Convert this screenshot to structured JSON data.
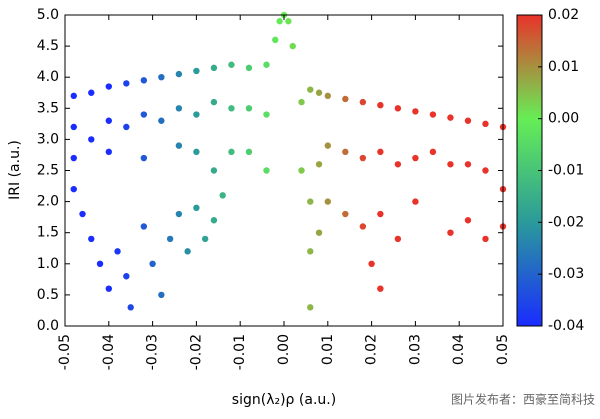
{
  "chart_data": {
    "type": "scatter",
    "xlabel": "sign(λ₂)ρ (a.u.)",
    "ylabel": "IRI (a.u.)",
    "watermark": "图片发布者：西豪至简科技",
    "x": [
      -0.048,
      -0.048,
      -0.048,
      -0.044,
      -0.044,
      -0.04,
      -0.04,
      -0.04,
      -0.036,
      -0.036,
      -0.032,
      -0.032,
      -0.032,
      -0.028,
      -0.028,
      -0.024,
      -0.024,
      -0.024,
      -0.02,
      -0.02,
      -0.02,
      -0.016,
      -0.016,
      -0.016,
      -0.012,
      -0.012,
      -0.012,
      -0.008,
      -0.008,
      -0.008,
      -0.004,
      -0.004,
      -0.004,
      -0.002,
      -0.001,
      0,
      0.001,
      0.002,
      0.004,
      0.004,
      0.006,
      0.006,
      0.006,
      0.006,
      0.008,
      0.008,
      0.008,
      0.01,
      0.01,
      0.01,
      0.014,
      0.014,
      0.014,
      0.018,
      0.018,
      0.018,
      0.02,
      0.022,
      0.022,
      0.022,
      0.022,
      0.026,
      0.026,
      0.026,
      0.03,
      0.03,
      0.03,
      0.034,
      0.034,
      0.038,
      0.038,
      0.038,
      0.042,
      0.042,
      0.042,
      0.046,
      0.046,
      0.046,
      0.05,
      0.05,
      0.05,
      -0.048,
      -0.046,
      -0.044,
      -0.042,
      -0.04,
      -0.038,
      -0.036,
      -0.035,
      -0.032,
      -0.03,
      -0.028,
      -0.026,
      -0.024,
      -0.022,
      -0.02,
      -0.018,
      -0.016,
      -0.014
    ],
    "y": [
      3.7,
      3.2,
      2.7,
      3.75,
      3.0,
      3.85,
      3.3,
      2.8,
      3.9,
      3.2,
      3.95,
      3.4,
      2.7,
      4.0,
      3.3,
      4.05,
      3.5,
      2.9,
      4.1,
      3.4,
      2.8,
      4.15,
      3.6,
      2.5,
      4.2,
      3.5,
      2.8,
      4.15,
      3.5,
      2.8,
      4.2,
      3.4,
      2.5,
      4.6,
      4.9,
      5,
      4.9,
      4.5,
      3.6,
      2.5,
      3.8,
      2.0,
      1.2,
      0.3,
      3.75,
      2.6,
      1.5,
      3.7,
      2.9,
      2.0,
      3.65,
      2.8,
      1.8,
      3.6,
      2.7,
      1.6,
      1.0,
      3.55,
      2.8,
      1.8,
      0.6,
      3.5,
      2.6,
      1.4,
      3.45,
      2.7,
      2.0,
      3.4,
      2.8,
      3.35,
      2.6,
      1.5,
      3.3,
      2.6,
      1.7,
      3.25,
      2.5,
      1.4,
      3.2,
      2.2,
      1.6,
      2.2,
      1.8,
      1.4,
      1.0,
      0.6,
      1.2,
      0.8,
      0.3,
      1.6,
      1.0,
      0.5,
      1.4,
      1.8,
      1.2,
      1.9,
      1.4,
      1.7,
      2.1
    ],
    "xlim": [
      -0.05,
      0.05
    ],
    "xticks": [
      -0.05,
      -0.04,
      -0.03,
      -0.02,
      -0.01,
      {
        "value": 0,
        "label": "0.00"
      },
      0.01,
      0.02,
      0.03,
      0.04,
      0.05
    ],
    "ylim": [
      0,
      5
    ],
    "yticks": [
      {
        "value": 0,
        "label": "0.0"
      },
      0.5,
      {
        "value": 1,
        "label": "1.0"
      },
      1.5,
      {
        "value": 2,
        "label": "2.0"
      },
      2.5,
      {
        "value": 3,
        "label": "3.0"
      },
      3.5,
      {
        "value": 4,
        "label": "4.0"
      },
      4.5,
      {
        "value": 5,
        "label": "5.0"
      }
    ],
    "clim": [
      -0.04,
      0.02
    ],
    "cticks": [
      0.02,
      0.01,
      {
        "value": 0,
        "label": "0.00"
      },
      -0.01,
      -0.02,
      -0.03,
      -0.04
    ],
    "colors": [
      "#1a2cff",
      "#2a9a9a",
      "#66ee55",
      "#e8332a"
    ]
  }
}
